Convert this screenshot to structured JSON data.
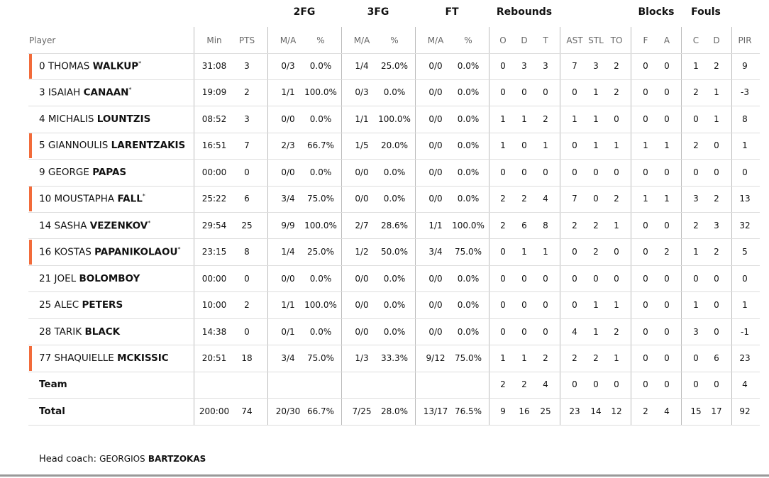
{
  "table": {
    "group_headers": [
      "2FG",
      "3FG",
      "FT",
      "Rebounds",
      "Blocks",
      "Fouls"
    ],
    "columns": [
      "Player",
      "Min",
      "PTS",
      "M/A",
      "%",
      "M/A",
      "%",
      "M/A",
      "%",
      "O",
      "D",
      "T",
      "AST",
      "STL",
      "TO",
      "F",
      "A",
      "C",
      "D",
      "PIR"
    ],
    "rows": [
      {
        "number": "0",
        "first": "THOMAS",
        "last": "WALKUP",
        "starter": "*",
        "highlight": true,
        "cells": [
          "31:08",
          "3",
          "0/3",
          "0.0%",
          "1/4",
          "25.0%",
          "0/0",
          "0.0%",
          "0",
          "3",
          "3",
          "7",
          "3",
          "2",
          "0",
          "0",
          "1",
          "2",
          "9"
        ]
      },
      {
        "number": "3",
        "first": "ISAIAH",
        "last": "CANAAN",
        "starter": "*",
        "highlight": false,
        "cells": [
          "19:09",
          "2",
          "1/1",
          "100.0%",
          "0/3",
          "0.0%",
          "0/0",
          "0.0%",
          "0",
          "0",
          "0",
          "0",
          "1",
          "2",
          "0",
          "0",
          "2",
          "1",
          "-3"
        ]
      },
      {
        "number": "4",
        "first": "MICHALIS",
        "last": "LOUNTZIS",
        "highlight": false,
        "cells": [
          "08:52",
          "3",
          "0/0",
          "0.0%",
          "1/1",
          "100.0%",
          "0/0",
          "0.0%",
          "1",
          "1",
          "2",
          "1",
          "1",
          "0",
          "0",
          "0",
          "0",
          "1",
          "8"
        ]
      },
      {
        "number": "5",
        "first": "GIANNOULIS",
        "last": "LARENTZAKIS",
        "highlight": true,
        "cells": [
          "16:51",
          "7",
          "2/3",
          "66.7%",
          "1/5",
          "20.0%",
          "0/0",
          "0.0%",
          "1",
          "0",
          "1",
          "0",
          "1",
          "1",
          "1",
          "1",
          "2",
          "0",
          "1"
        ]
      },
      {
        "number": "9",
        "first": "GEORGE",
        "last": "PAPAS",
        "highlight": false,
        "cells": [
          "00:00",
          "0",
          "0/0",
          "0.0%",
          "0/0",
          "0.0%",
          "0/0",
          "0.0%",
          "0",
          "0",
          "0",
          "0",
          "0",
          "0",
          "0",
          "0",
          "0",
          "0",
          "0"
        ]
      },
      {
        "number": "10",
        "first": "MOUSTAPHA",
        "last": "FALL",
        "starter": "*",
        "highlight": true,
        "cells": [
          "25:22",
          "6",
          "3/4",
          "75.0%",
          "0/0",
          "0.0%",
          "0/0",
          "0.0%",
          "2",
          "2",
          "4",
          "7",
          "0",
          "2",
          "1",
          "1",
          "3",
          "2",
          "13"
        ]
      },
      {
        "number": "14",
        "first": "SASHA",
        "last": "VEZENKOV",
        "starter": "*",
        "highlight": false,
        "cells": [
          "29:54",
          "25",
          "9/9",
          "100.0%",
          "2/7",
          "28.6%",
          "1/1",
          "100.0%",
          "2",
          "6",
          "8",
          "2",
          "2",
          "1",
          "0",
          "0",
          "2",
          "3",
          "32"
        ]
      },
      {
        "number": "16",
        "first": "KOSTAS",
        "last": "PAPANIKOLAOU",
        "starter": "*",
        "highlight": true,
        "cells": [
          "23:15",
          "8",
          "1/4",
          "25.0%",
          "1/2",
          "50.0%",
          "3/4",
          "75.0%",
          "0",
          "1",
          "1",
          "0",
          "2",
          "0",
          "0",
          "2",
          "1",
          "2",
          "5"
        ]
      },
      {
        "number": "21",
        "first": "JOEL",
        "last": "BOLOMBOY",
        "highlight": false,
        "cells": [
          "00:00",
          "0",
          "0/0",
          "0.0%",
          "0/0",
          "0.0%",
          "0/0",
          "0.0%",
          "0",
          "0",
          "0",
          "0",
          "0",
          "0",
          "0",
          "0",
          "0",
          "0",
          "0"
        ]
      },
      {
        "number": "25",
        "first": "ALEC",
        "last": "PETERS",
        "highlight": false,
        "cells": [
          "10:00",
          "2",
          "1/1",
          "100.0%",
          "0/0",
          "0.0%",
          "0/0",
          "0.0%",
          "0",
          "0",
          "0",
          "0",
          "1",
          "1",
          "0",
          "0",
          "1",
          "0",
          "1"
        ]
      },
      {
        "number": "28",
        "first": "TARIK",
        "last": "BLACK",
        "highlight": false,
        "cells": [
          "14:38",
          "0",
          "0/1",
          "0.0%",
          "0/0",
          "0.0%",
          "0/0",
          "0.0%",
          "0",
          "0",
          "0",
          "4",
          "1",
          "2",
          "0",
          "0",
          "3",
          "0",
          "-1"
        ]
      },
      {
        "number": "77",
        "first": "SHAQUIELLE",
        "last": "MCKISSIC",
        "highlight": true,
        "cells": [
          "20:51",
          "18",
          "3/4",
          "75.0%",
          "1/3",
          "33.3%",
          "9/12",
          "75.0%",
          "1",
          "1",
          "2",
          "2",
          "2",
          "1",
          "0",
          "0",
          "0",
          "6",
          "23"
        ]
      },
      {
        "label": "Team",
        "highlight": false,
        "cells": [
          null,
          null,
          null,
          null,
          null,
          null,
          null,
          null,
          "2",
          "2",
          "4",
          "0",
          "0",
          "0",
          "0",
          "0",
          "0",
          "0",
          "4"
        ]
      },
      {
        "label": "Total",
        "highlight": false,
        "cells": [
          "200:00",
          "74",
          "20/30",
          "66.7%",
          "7/25",
          "28.0%",
          "13/17",
          "76.5%",
          "9",
          "16",
          "25",
          "23",
          "14",
          "12",
          "2",
          "4",
          "15",
          "17",
          "92"
        ]
      }
    ]
  },
  "coach": {
    "label": "Head coach:",
    "first": "GEORGIOS",
    "last": "BARTZOKAS"
  }
}
